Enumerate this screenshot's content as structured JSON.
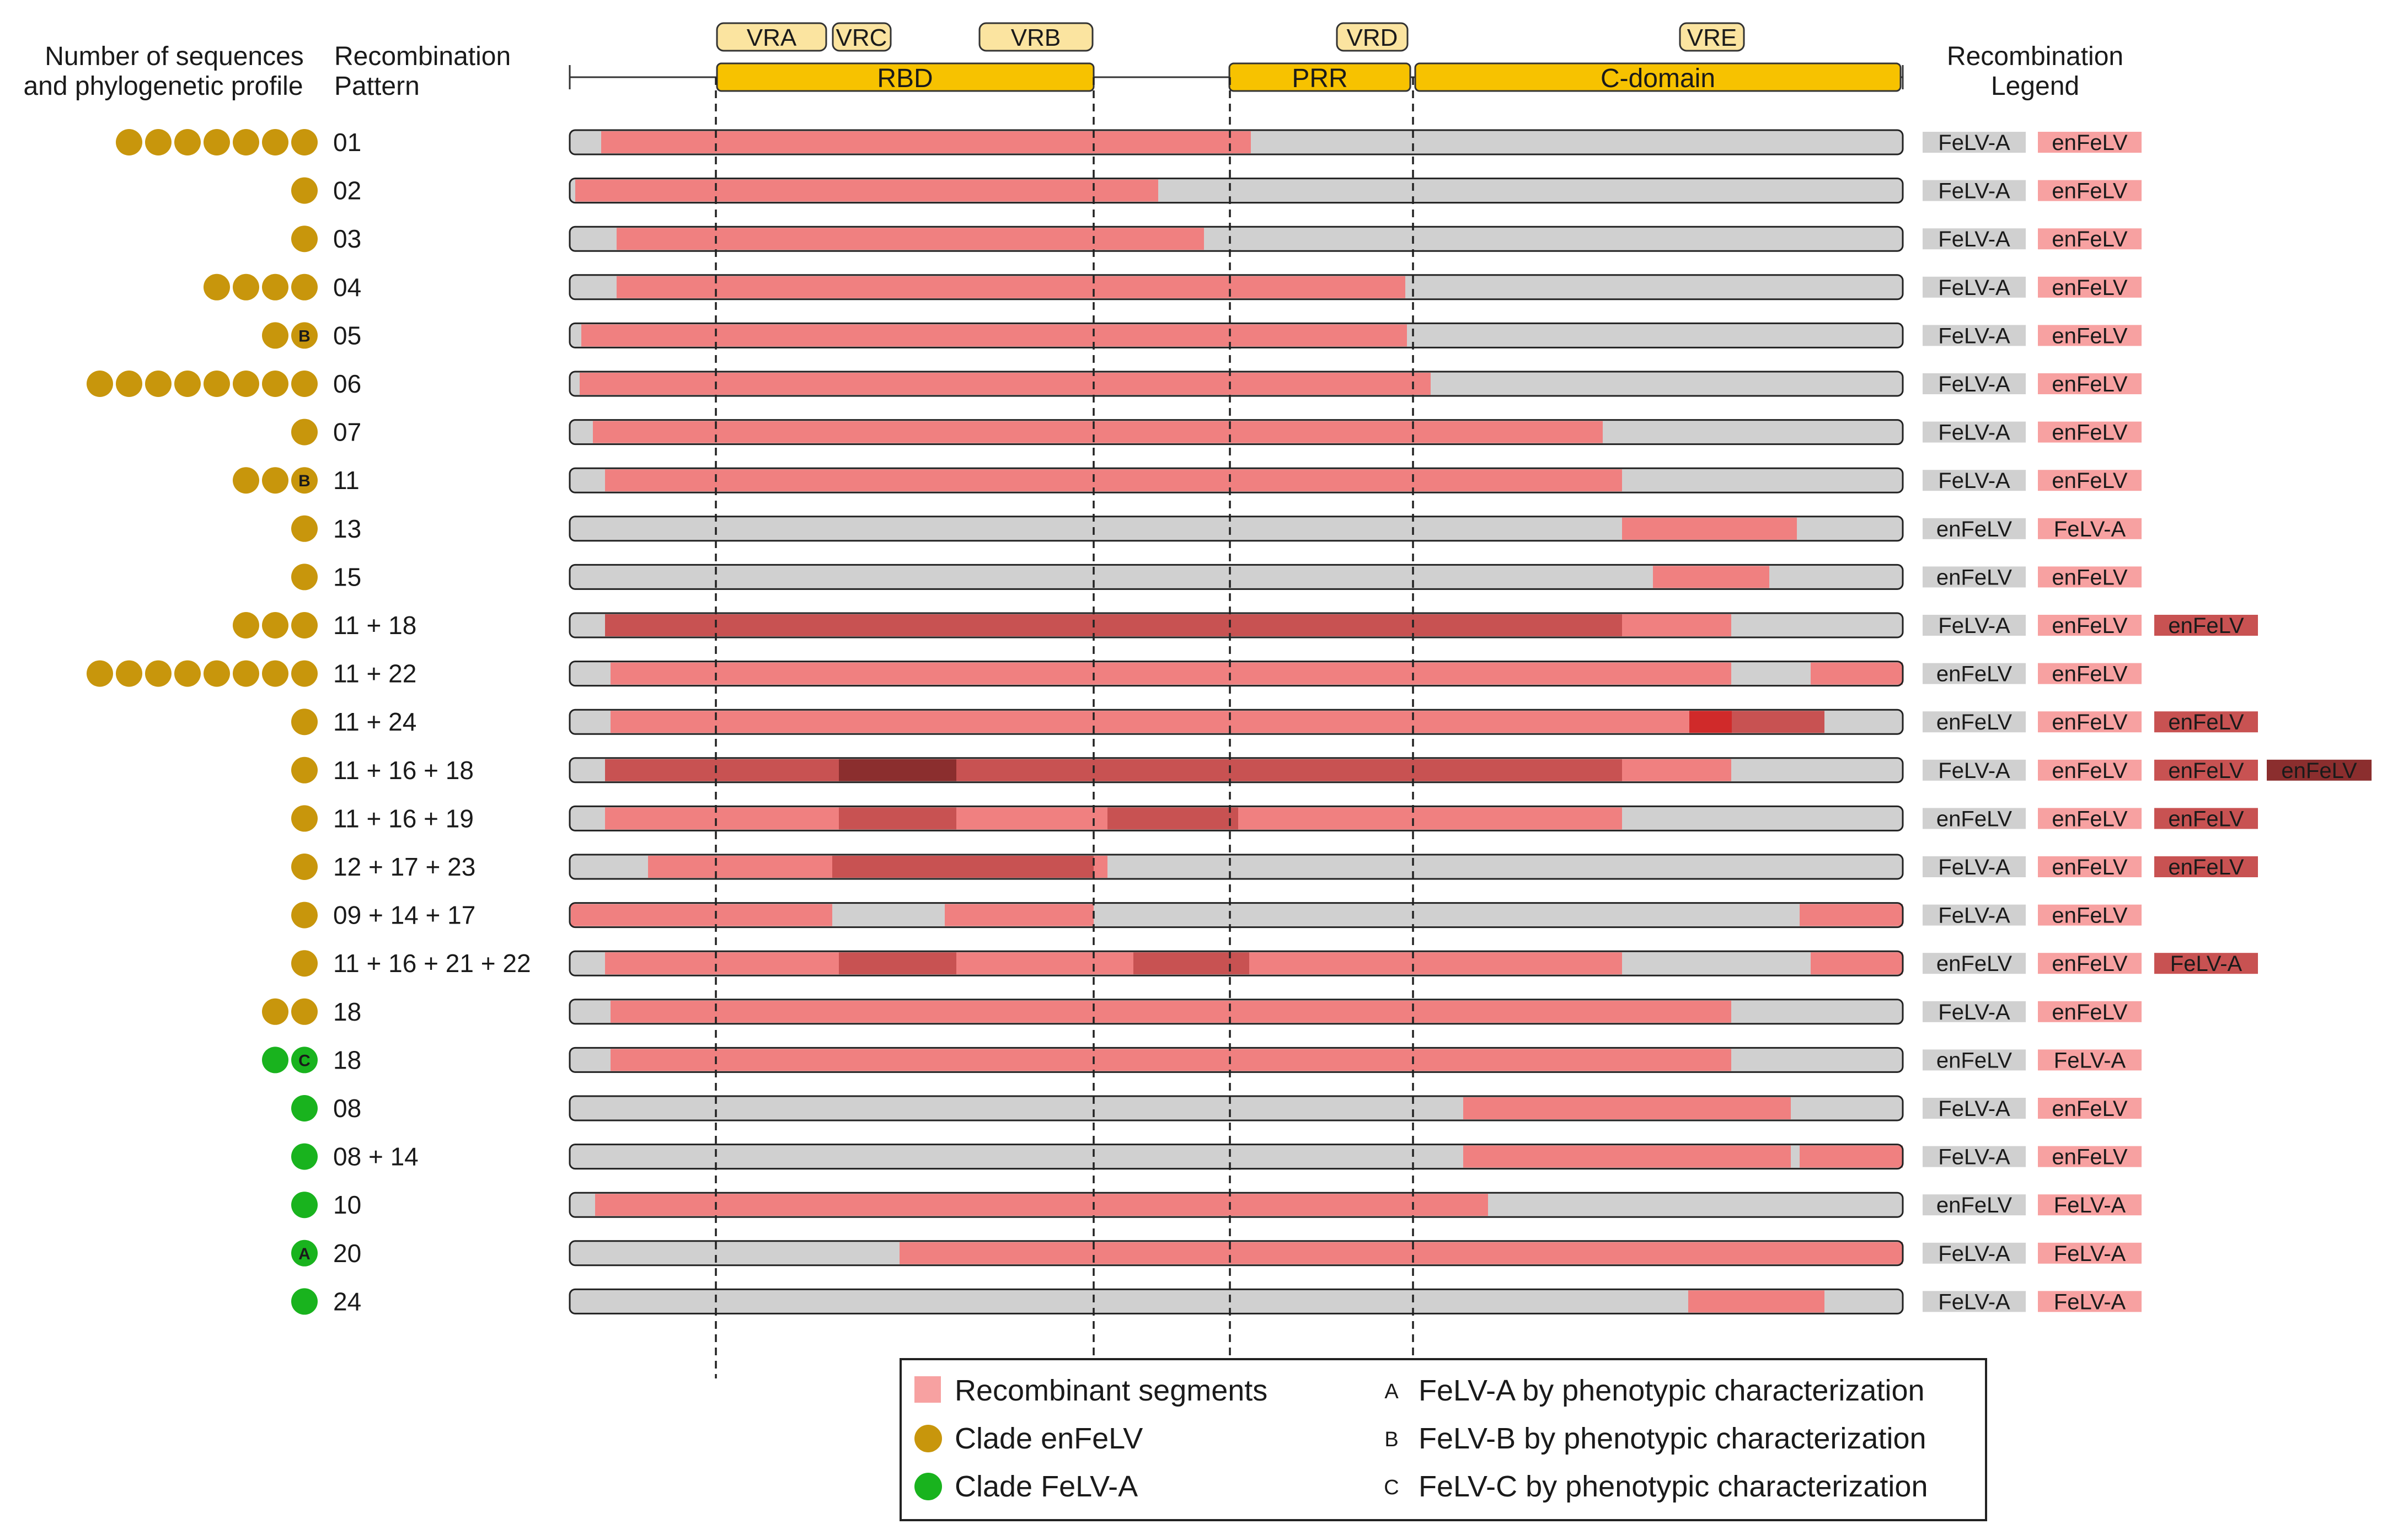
{
  "colors": {
    "enfelv_clade": "#C8960C",
    "felva_clade": "#19B31E",
    "recombinant": "#F08080",
    "background_segment": "#D0D0D0",
    "domain_fill": "#F7C200",
    "vr_fill": "#FBE4A0",
    "shade_light": "#F08080",
    "shade_mid": "#C85252",
    "shade_dark": "#A03C3C",
    "shade_deep": "#8B2E2E",
    "shade_bright": "#D02A2A"
  },
  "header": {
    "col1_line1": "Number of sequences",
    "col1_line2": "and phylogenetic profile",
    "col2_line1": "Recombination",
    "col2_line2": "Pattern",
    "legend_line1": "Recombination",
    "legend_line2": "Legend"
  },
  "domains": [
    "RBD",
    "PRR",
    "C-domain"
  ],
  "variable_regions": [
    "VRA",
    "VRC",
    "VRB",
    "VRD",
    "VRE"
  ],
  "rows": [
    {
      "label": "01",
      "dots": [
        "e",
        "e",
        "e",
        "e",
        "e",
        "e",
        "e"
      ],
      "tags": [
        "FeLV-A",
        "enFeLV"
      ]
    },
    {
      "label": "02",
      "dots": [
        "e"
      ],
      "tags": [
        "FeLV-A",
        "enFeLV"
      ]
    },
    {
      "label": "03",
      "dots": [
        "e"
      ],
      "tags": [
        "FeLV-A",
        "enFeLV"
      ]
    },
    {
      "label": "04",
      "dots": [
        "e",
        "e",
        "e",
        "e"
      ],
      "tags": [
        "FeLV-A",
        "enFeLV"
      ]
    },
    {
      "label": "05",
      "dots": [
        "e",
        "eB"
      ],
      "tags": [
        "FeLV-A",
        "enFeLV"
      ]
    },
    {
      "label": "06",
      "dots": [
        "e",
        "e",
        "e",
        "e",
        "e",
        "e",
        "e",
        "e"
      ],
      "tags": [
        "FeLV-A",
        "enFeLV"
      ]
    },
    {
      "label": "07",
      "dots": [
        "e"
      ],
      "tags": [
        "FeLV-A",
        "enFeLV"
      ]
    },
    {
      "label": "11",
      "dots": [
        "e",
        "e",
        "eB"
      ],
      "tags": [
        "FeLV-A",
        "enFeLV"
      ]
    },
    {
      "label": "13",
      "dots": [
        "e"
      ],
      "tags": [
        "enFeLV",
        "FeLV-A"
      ]
    },
    {
      "label": "15",
      "dots": [
        "e"
      ],
      "tags": [
        "enFeLV",
        "enFeLV"
      ]
    },
    {
      "label": "11 + 18",
      "dots": [
        "e",
        "e",
        "e"
      ],
      "tags": [
        "FeLV-A",
        "enFeLV",
        "enFeLV"
      ]
    },
    {
      "label": "11 + 22",
      "dots": [
        "e",
        "e",
        "e",
        "e",
        "e",
        "e",
        "e",
        "e"
      ],
      "tags": [
        "enFeLV",
        "enFeLV"
      ]
    },
    {
      "label": "11 + 24",
      "dots": [
        "e"
      ],
      "tags": [
        "enFeLV",
        "enFeLV",
        "enFeLV"
      ]
    },
    {
      "label": "11 + 16 + 18",
      "dots": [
        "e"
      ],
      "tags": [
        "FeLV-A",
        "enFeLV",
        "enFeLV",
        "enFeLV"
      ]
    },
    {
      "label": "11 + 16 + 19",
      "dots": [
        "e"
      ],
      "tags": [
        "enFeLV",
        "enFeLV",
        "enFeLV"
      ]
    },
    {
      "label": "12 + 17 + 23",
      "dots": [
        "e"
      ],
      "tags": [
        "FeLV-A",
        "enFeLV",
        "enFeLV"
      ]
    },
    {
      "label": "09 + 14 + 17",
      "dots": [
        "e"
      ],
      "tags": [
        "FeLV-A",
        "enFeLV"
      ]
    },
    {
      "label": "11 + 16 + 21 + 22",
      "dots": [
        "e"
      ],
      "tags": [
        "enFeLV",
        "enFeLV",
        "FeLV-A"
      ]
    },
    {
      "label": "18",
      "dots": [
        "e",
        "e"
      ],
      "tags": [
        "FeLV-A",
        "enFeLV"
      ]
    },
    {
      "label": "18",
      "dots": [
        "g",
        "gC"
      ],
      "tags": [
        "enFeLV",
        "FeLV-A"
      ]
    },
    {
      "label": "08",
      "dots": [
        "g"
      ],
      "tags": [
        "FeLV-A",
        "enFeLV"
      ]
    },
    {
      "label": "08 + 14",
      "dots": [
        "g"
      ],
      "tags": [
        "FeLV-A",
        "enFeLV"
      ]
    },
    {
      "label": "10",
      "dots": [
        "g"
      ],
      "tags": [
        "enFeLV",
        "FeLV-A"
      ]
    },
    {
      "label": "20",
      "dots": [
        "gA"
      ],
      "tags": [
        "FeLV-A",
        "FeLV-A"
      ]
    },
    {
      "label": "24",
      "dots": [
        "g"
      ],
      "tags": [
        "FeLV-A",
        "FeLV-A"
      ]
    }
  ],
  "key": {
    "recombinant": "Recombinant segments",
    "clade_enfelv": "Clade enFeLV",
    "clade_felva": "Clade FeLV-A",
    "letter_a": "A",
    "letter_b": "B",
    "letter_c": "C",
    "pheno_a": "FeLV-A by phenotypic characterization",
    "pheno_b": "FeLV-B by phenotypic characterization",
    "pheno_c": "FeLV-C by phenotypic characterization"
  }
}
